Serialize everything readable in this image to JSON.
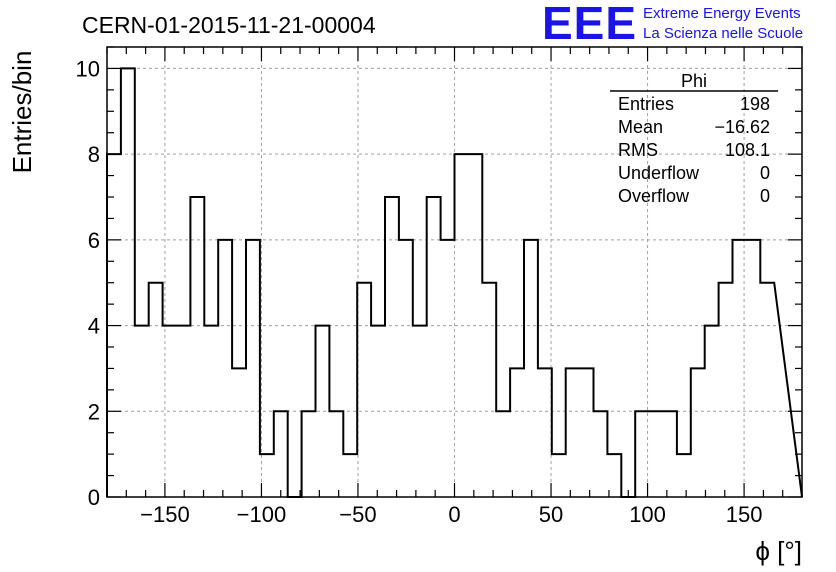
{
  "chart_data": {
    "type": "bar",
    "histogram": true,
    "title": "CERN-01-2015-11-21-00004",
    "xlabel": "ϕ [°]",
    "ylabel": "Entries/bin",
    "xlim": [
      -180,
      180
    ],
    "ylim": [
      0,
      10.5
    ],
    "bin_width": 7.2,
    "x_ticks": [
      -150,
      -100,
      -50,
      0,
      50,
      100,
      150
    ],
    "x_tick_labels": [
      "−150",
      "−100",
      "−50",
      "0",
      "50",
      "100",
      "150"
    ],
    "y_ticks": [
      0,
      2,
      4,
      6,
      8,
      10
    ],
    "y_tick_labels": [
      "0",
      "2",
      "4",
      "6",
      "8",
      "10"
    ],
    "grid": true,
    "values": [
      8,
      10,
      4,
      5,
      4,
      4,
      7,
      4,
      6,
      3,
      6,
      1,
      2,
      0,
      2,
      4,
      2,
      1,
      5,
      4,
      7,
      6,
      4,
      7,
      6,
      8,
      8,
      5,
      2,
      3,
      6,
      3,
      1,
      3,
      3,
      2,
      1,
      0,
      2,
      2,
      2,
      1,
      3,
      4,
      5,
      6,
      6,
      5
    ],
    "stats": {
      "name": "Phi",
      "rows": [
        {
          "label": "Entries",
          "value": "198"
        },
        {
          "label": "Mean",
          "value": "−16.62"
        },
        {
          "label": "RMS",
          "value": "108.1"
        },
        {
          "label": "Underflow",
          "value": "0"
        },
        {
          "label": "Overflow",
          "value": "0"
        }
      ]
    },
    "colors": {
      "line": "#000000",
      "grid": "#a0a0a0",
      "logo": "#1a14e6"
    }
  },
  "logo": {
    "mark": "EEE",
    "line1": "Extreme Energy Events",
    "line2": "La Scienza nelle Scuole"
  }
}
